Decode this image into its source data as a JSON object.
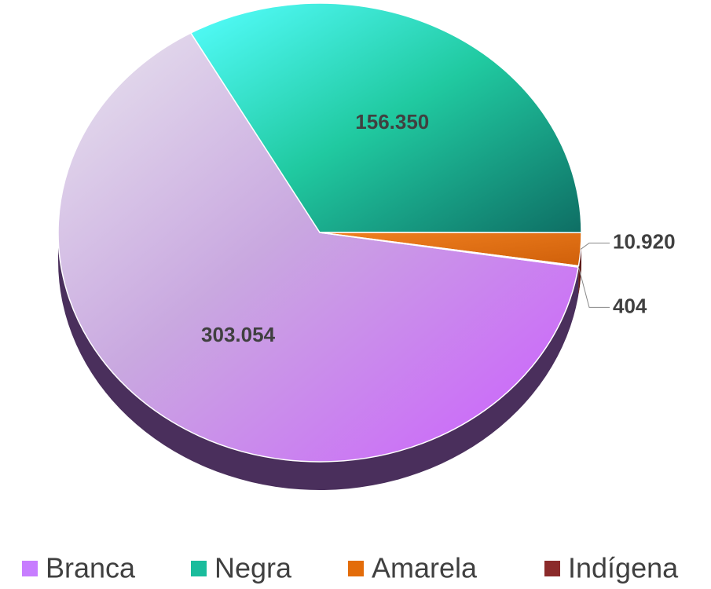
{
  "chart_data": {
    "type": "pie",
    "categories": [
      "Branca",
      "Negra",
      "Amarela",
      "Indígena"
    ],
    "values": [
      303054,
      156350,
      10920,
      404
    ],
    "value_labels": [
      "303.054",
      "156.350",
      "10.920",
      "404"
    ],
    "colors": [
      "#c77dff",
      "#1abc9c",
      "#e36c0a",
      "#8b2a2a"
    ],
    "legend": "bottom"
  }
}
